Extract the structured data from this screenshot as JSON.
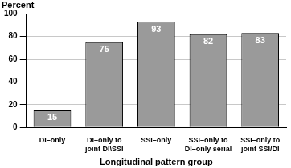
{
  "chart_data": {
    "type": "bar",
    "y_label": "Percent",
    "x_label": "Longitudinal pattern group",
    "categories": [
      "DI–only",
      "DI–only to joint DI\\SSI",
      "SSI–only",
      "SSI–only to DI–only serial",
      "SSI–only to joint SSI/DI"
    ],
    "values": [
      15,
      75,
      93,
      82,
      83
    ],
    "color": "#9a9a9a",
    "ylim": [
      0,
      100
    ],
    "yticks": [
      0,
      20,
      40,
      60,
      80,
      100
    ],
    "grid": true,
    "data_labels": true
  }
}
